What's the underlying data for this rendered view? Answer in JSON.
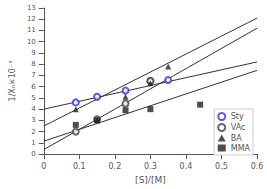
{
  "chart_data": {
    "type": "scatter",
    "xlabel": "[S]/[M]",
    "ylabel": "1/Xₙ×10⁻³",
    "xlim": [
      0,
      0.6
    ],
    "ylim": [
      0,
      13
    ],
    "xticks": [
      0,
      0.1,
      0.2,
      0.3,
      0.4,
      0.5,
      0.6
    ],
    "yticks": [
      0,
      1,
      2,
      3,
      4,
      5,
      6,
      7,
      8,
      9,
      10,
      11,
      12,
      13
    ],
    "grid": false,
    "legend": "lower right",
    "series": [
      {
        "type": "line",
        "color": "#333333",
        "x": [
          0,
          0.6
        ],
        "values": [
          4.0,
          8.2
        ]
      },
      {
        "name": "Sty",
        "type": "scatter",
        "color": "#3333cc",
        "marker": "open_circle",
        "x": [
          0.09,
          0.15,
          0.23,
          0.3,
          0.35
        ],
        "values": [
          4.6,
          5.1,
          5.65,
          6.5,
          6.6
        ]
      },
      {
        "type": "line",
        "color": "#333333",
        "x": [
          0,
          0.6
        ],
        "values": [
          0.4,
          11.2
        ]
      },
      {
        "name": "VAc",
        "type": "scatter",
        "color": "#444444",
        "marker": "open_circle",
        "x": [
          0.09,
          0.15,
          0.23,
          0.3
        ],
        "values": [
          2.0,
          3.1,
          4.5,
          6.5
        ]
      },
      {
        "type": "line",
        "color": "#333333",
        "x": [
          0,
          0.6
        ],
        "values": [
          2.5,
          12.1
        ]
      },
      {
        "name": "BA",
        "type": "scatter",
        "color": "#222222",
        "marker": "triangle",
        "x": [
          0.09,
          0.15,
          0.23,
          0.3,
          0.35
        ],
        "values": [
          4.0,
          3.05,
          5.1,
          6.3,
          7.8
        ]
      },
      {
        "type": "line",
        "color": "#333333",
        "x": [
          0,
          0.6
        ],
        "values": [
          1.15,
          7.45
        ]
      },
      {
        "name": "MMA",
        "type": "scatter",
        "color": "#222222",
        "marker": "square",
        "x": [
          0.09,
          0.15,
          0.23,
          0.3,
          0.44
        ],
        "values": [
          2.6,
          3.0,
          3.9,
          4.0,
          4.4
        ]
      }
    ]
  }
}
